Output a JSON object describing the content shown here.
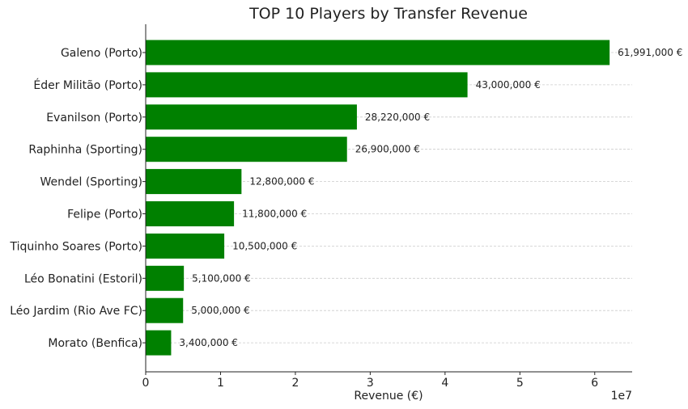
{
  "chart_data": {
    "type": "bar",
    "orientation": "horizontal",
    "title": "TOP 10 Players by Transfer Revenue",
    "xlabel": "Revenue (€)",
    "ylabel": "",
    "x_offset_label": "1e7",
    "xlim": [
      0,
      65000000
    ],
    "x_ticks": [
      0,
      10000000,
      20000000,
      30000000,
      40000000,
      50000000,
      60000000
    ],
    "x_tick_labels": [
      "0",
      "1",
      "2",
      "3",
      "4",
      "5",
      "6"
    ],
    "grid": "x-dashed",
    "bar_color": "#008000",
    "categories": [
      "Galeno (Porto)",
      "Éder Militão (Porto)",
      "Evanilson (Porto)",
      "Raphinha (Sporting)",
      "Wendel (Sporting)",
      "Felipe (Porto)",
      "Tiquinho Soares (Porto)",
      "Léo Bonatini (Estoril)",
      "Léo Jardim (Rio Ave FC)",
      "Morato (Benfica)"
    ],
    "values": [
      61991000,
      43000000,
      28220000,
      26900000,
      12800000,
      11800000,
      10500000,
      5100000,
      5000000,
      3400000
    ],
    "value_labels": [
      "61,991,000 €",
      "43,000,000 €",
      "28,220,000 €",
      "26,900,000 €",
      "12,800,000 €",
      "11,800,000 €",
      "10,500,000 €",
      "5,100,000 €",
      "5,000,000 €",
      "3,400,000 €"
    ]
  }
}
